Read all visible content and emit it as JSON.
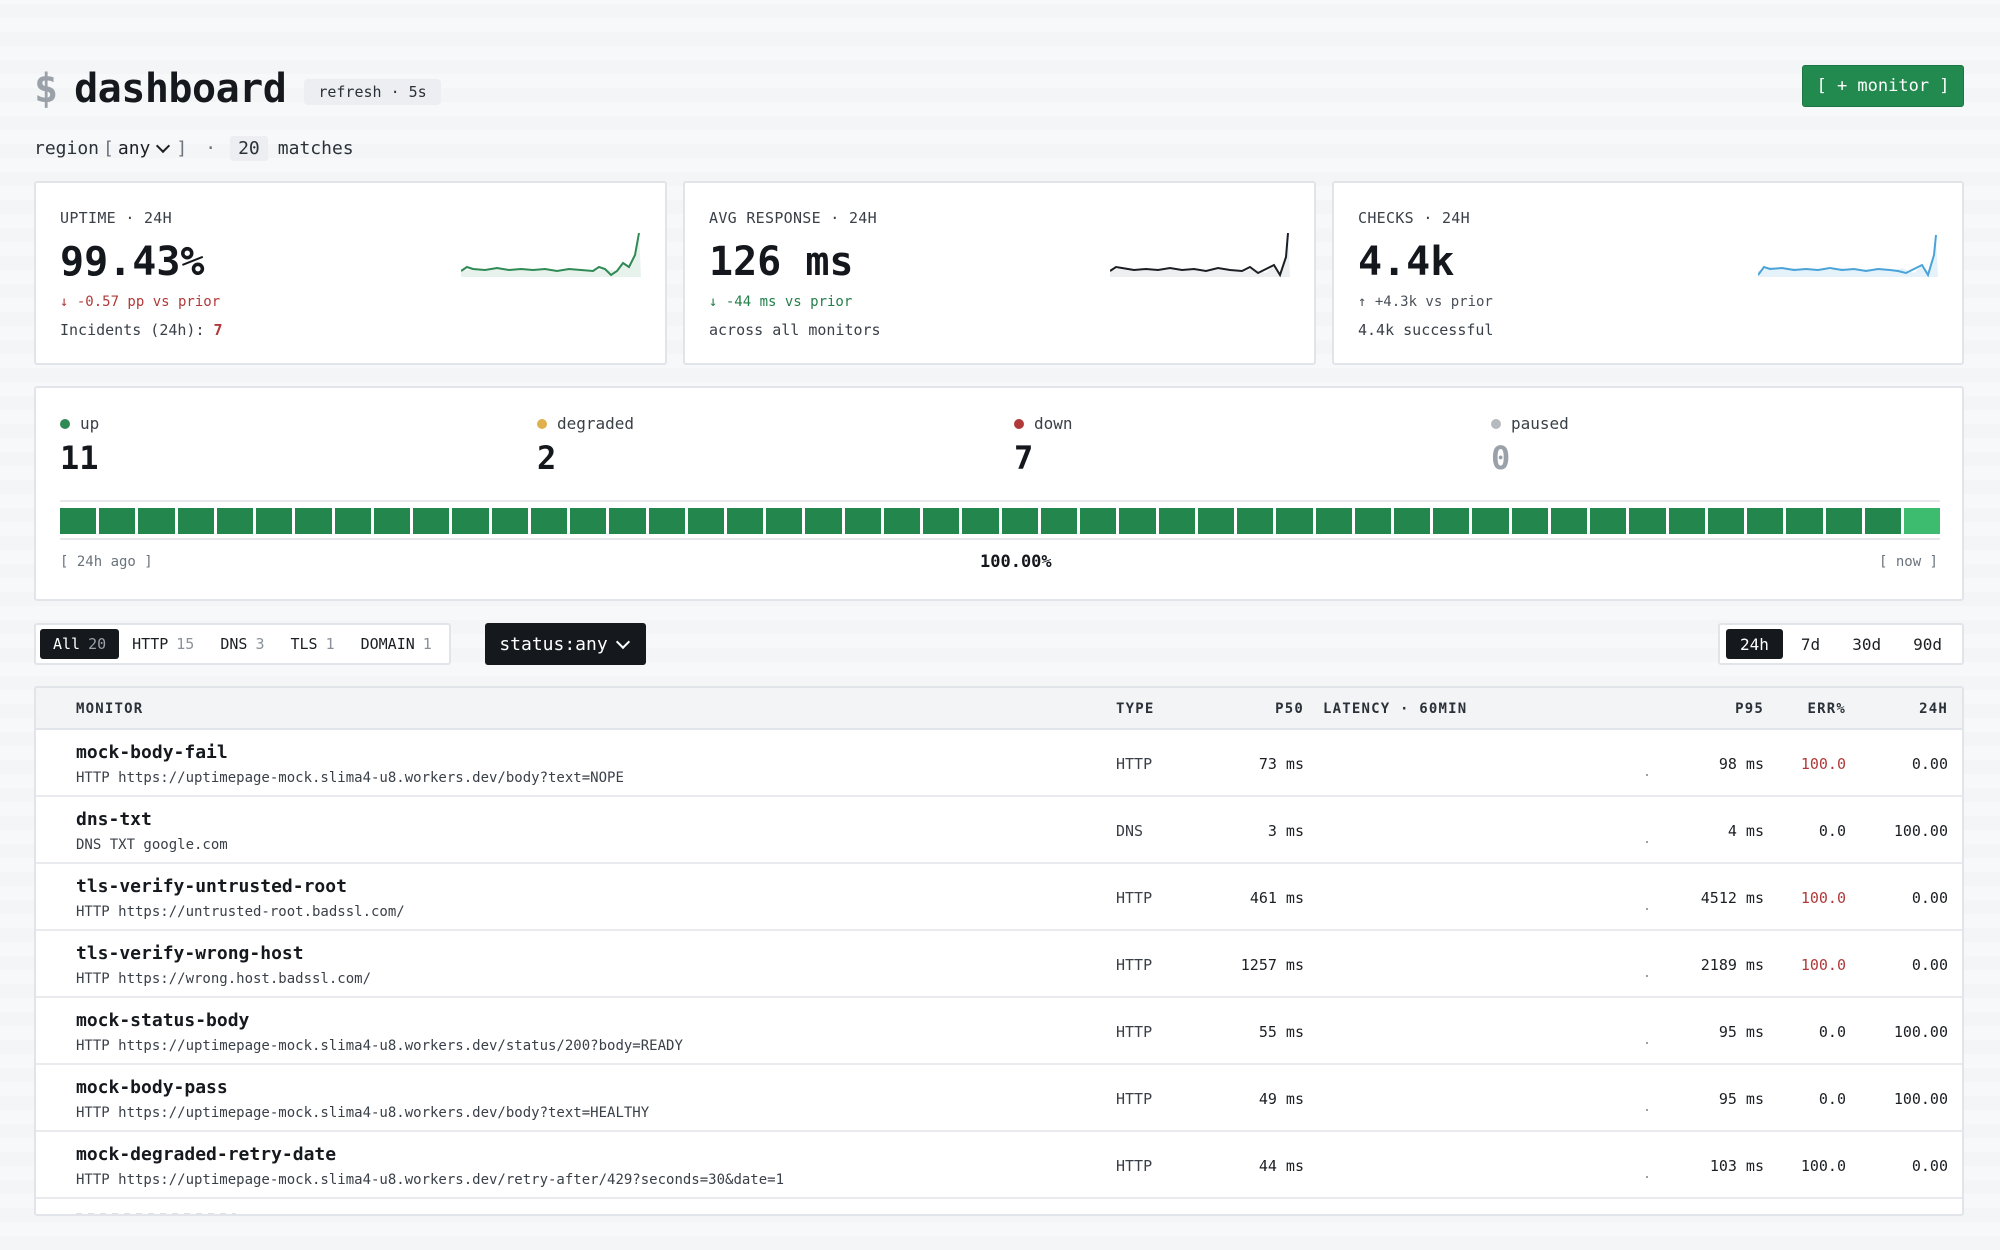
{
  "header": {
    "prompt_symbol": "$",
    "title": "dashboard",
    "refresh_label": "refresh · 5s",
    "add_button_label": "[ + monitor ]"
  },
  "region": {
    "label": "region",
    "bracket_open": "[",
    "bracket_close": "]",
    "value": "any",
    "separator": "·",
    "match_count": "20",
    "match_label": "matches"
  },
  "cards": [
    {
      "label": "UPTIME · 24H",
      "value": "99.43%",
      "delta": "↓ -0.57 pp vs prior",
      "sub_label": "Incidents (24h):",
      "sub_value": "7",
      "spark_color": "#2f8a55"
    },
    {
      "label": "AVG RESPONSE · 24H",
      "value": "126 ms",
      "delta": "↓ -44 ms vs prior",
      "sub_label": "across all monitors",
      "spark_color": "#1b1f24"
    },
    {
      "label": "CHECKS · 24H",
      "value": "4.4k",
      "delta": "↑ +4.3k vs prior",
      "sub_label": "4.4k successful",
      "spark_color": "#4aa3d8"
    }
  ],
  "status": {
    "items": [
      {
        "label": "up",
        "count": "11",
        "color": "#2f8a55"
      },
      {
        "label": "degraded",
        "count": "2",
        "color": "#e0b04a"
      },
      {
        "label": "down",
        "count": "7",
        "color": "#b03a3a"
      },
      {
        "label": "paused",
        "count": "0",
        "color": "#b5babf"
      }
    ],
    "range_start": "[ 24h ago ]",
    "uptime_pct": "100.00%",
    "range_end": "[ now ]",
    "bar_count": 48
  },
  "filters": {
    "tabs": [
      {
        "label": "All",
        "count": "20",
        "active": true
      },
      {
        "label": "HTTP",
        "count": "15",
        "active": false
      },
      {
        "label": "DNS",
        "count": "3",
        "active": false
      },
      {
        "label": "TLS",
        "count": "1",
        "active": false
      },
      {
        "label": "DOMAIN",
        "count": "1",
        "active": false
      }
    ],
    "status_filter": "status:any",
    "ranges": [
      {
        "label": "24h",
        "active": true
      },
      {
        "label": "7d",
        "active": false
      },
      {
        "label": "30d",
        "active": false
      },
      {
        "label": "90d",
        "active": false
      }
    ]
  },
  "table": {
    "headers": {
      "monitor": "MONITOR",
      "type": "TYPE",
      "p50": "P50",
      "latency": "LATENCY · 60MIN",
      "p95": "P95",
      "err": "ERR%",
      "d24": "24H"
    },
    "rows": [
      {
        "name": "mock-body-fail",
        "url": "HTTP https://uptimepage-mock.slima4-u8.workers.dev/body?text=NOPE",
        "type": "HTTP",
        "p50": "73 ms",
        "p95": "98 ms",
        "err": "100.0",
        "err_red": true,
        "d24": "0.00"
      },
      {
        "name": "dns-txt",
        "url": "DNS TXT google.com",
        "type": "DNS",
        "p50": "3 ms",
        "p95": "4 ms",
        "err": "0.0",
        "err_red": false,
        "d24": "100.00"
      },
      {
        "name": "tls-verify-untrusted-root",
        "url": "HTTP https://untrusted-root.badssl.com/",
        "type": "HTTP",
        "p50": "461 ms",
        "p95": "4512 ms",
        "err": "100.0",
        "err_red": true,
        "d24": "0.00"
      },
      {
        "name": "tls-verify-wrong-host",
        "url": "HTTP https://wrong.host.badssl.com/",
        "type": "HTTP",
        "p50": "1257 ms",
        "p95": "2189 ms",
        "err": "100.0",
        "err_red": true,
        "d24": "0.00"
      },
      {
        "name": "mock-status-body",
        "url": "HTTP https://uptimepage-mock.slima4-u8.workers.dev/status/200?body=READY",
        "type": "HTTP",
        "p50": "55 ms",
        "p95": "95 ms",
        "err": "0.0",
        "err_red": false,
        "d24": "100.00"
      },
      {
        "name": "mock-body-pass",
        "url": "HTTP https://uptimepage-mock.slima4-u8.workers.dev/body?text=HEALTHY",
        "type": "HTTP",
        "p50": "49 ms",
        "p95": "95 ms",
        "err": "0.0",
        "err_red": false,
        "d24": "100.00"
      },
      {
        "name": "mock-degraded-retry-date",
        "url": "HTTP https://uptimepage-mock.slima4-u8.workers.dev/retry-after/429?seconds=30&date=1",
        "type": "HTTP",
        "p50": "44 ms",
        "p95": "103 ms",
        "err": "100.0",
        "err_red": false,
        "d24": "0.00"
      }
    ]
  }
}
